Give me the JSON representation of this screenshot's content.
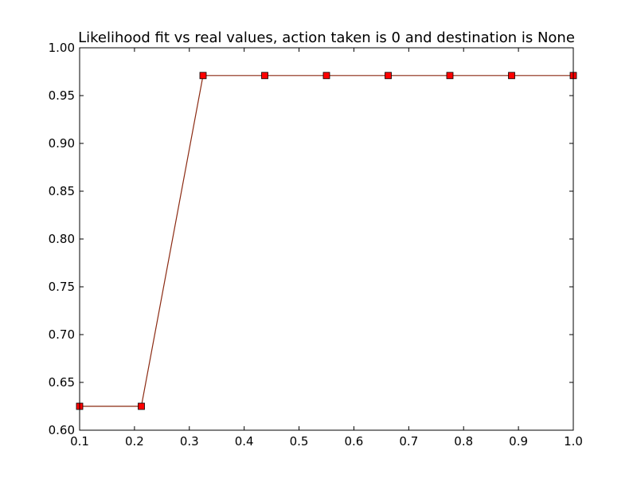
{
  "chart_data": {
    "type": "line",
    "title": "Likelihood fit vs real values, action taken is 0 and destination is None",
    "xlabel": "",
    "ylabel": "",
    "xlim": [
      0.1,
      1.0
    ],
    "ylim": [
      0.6,
      1.0
    ],
    "x_ticks": [
      "0.1",
      "0.2",
      "0.3",
      "0.4",
      "0.5",
      "0.6",
      "0.7",
      "0.8",
      "0.9",
      "1.0"
    ],
    "y_ticks": [
      "0.60",
      "0.65",
      "0.70",
      "0.75",
      "0.80",
      "0.85",
      "0.90",
      "0.95",
      "1.00"
    ],
    "grid": false,
    "series": [
      {
        "color": "#ff0000",
        "line_color": "#8b2a12",
        "marker": "square",
        "x": [
          0.1,
          0.2125,
          0.325,
          0.4375,
          0.55,
          0.6625,
          0.775,
          0.8875,
          1.0
        ],
        "y": [
          0.625,
          0.625,
          0.971,
          0.971,
          0.971,
          0.971,
          0.971,
          0.971,
          0.971
        ]
      }
    ]
  }
}
